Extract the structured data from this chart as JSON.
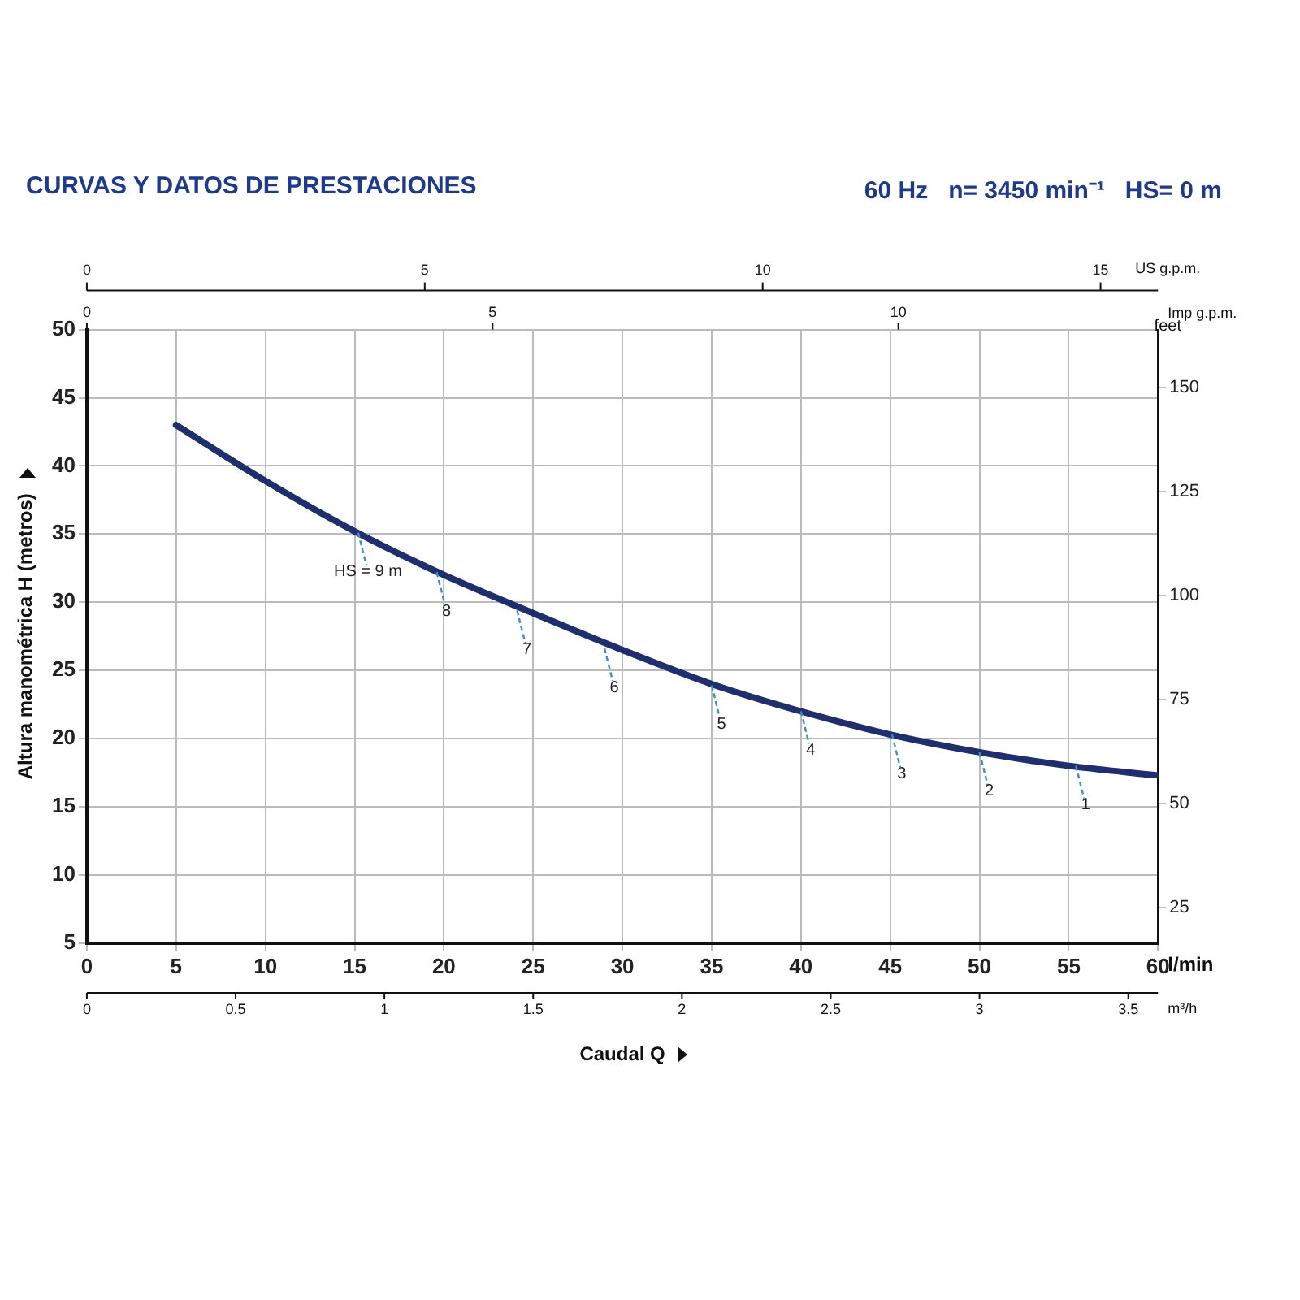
{
  "chart_data": {
    "type": "line",
    "title": "CURVAS Y DATOS DE PRESTACIONES",
    "subtitle": "60 Hz   n= 3450 min⁻¹   HS= 0 m",
    "xlabel": "Caudal Q",
    "ylabel": "Altura manométrica H (metros)",
    "x2label": "US g.p.m.",
    "y2label": "feet",
    "x": [
      5,
      10,
      15,
      20,
      25,
      30,
      35,
      40,
      45,
      50,
      55,
      60
    ],
    "series": [
      {
        "color": "#1f2f6e",
        "values": [
          43.0,
          38.9,
          35.2,
          32.0,
          29.2,
          26.5,
          24.0,
          22.0,
          20.3,
          19.0,
          18.0,
          17.3
        ]
      }
    ],
    "xlim": [
      0,
      60
    ],
    "xticks": [
      0,
      5,
      10,
      15,
      20,
      25,
      30,
      35,
      40,
      45,
      50,
      55,
      60
    ],
    "ylim": [
      5,
      50
    ],
    "yticks": [
      5,
      10,
      15,
      20,
      25,
      30,
      35,
      40,
      45,
      50
    ],
    "x2lim": [
      0,
      15.85
    ],
    "x2ticks": [
      0,
      5,
      10,
      15
    ],
    "y2lim": [
      16.4,
      164
    ],
    "y2ticks": [
      25,
      50,
      75,
      100,
      125,
      150
    ],
    "grid": true,
    "legend": false,
    "marker": "none",
    "line_style": "solid",
    "annotations": [
      "l/min",
      "m³/h",
      "0",
      "0.5",
      "1",
      "1.5",
      "2",
      "2.5",
      "3",
      "3.5",
      "Imp g.p.m.",
      "0",
      "5",
      "10",
      {
        "text": "HS = 9 m",
        "x": 15.2,
        "y": 35.1
      },
      {
        "text": "8",
        "x": 19.6,
        "y": 32.2
      },
      {
        "text": "7",
        "x": 24.1,
        "y": 29.4
      },
      {
        "text": "6",
        "x": 29.0,
        "y": 26.6
      },
      {
        "text": "5",
        "x": 35.0,
        "y": 23.9
      },
      {
        "text": "4",
        "x": 40.0,
        "y": 22.0
      },
      {
        "text": "3",
        "x": 45.1,
        "y": 20.3
      },
      {
        "text": "2",
        "x": 50.0,
        "y": 19.0
      },
      {
        "text": "1",
        "x": 55.4,
        "y": 18.0
      }
    ]
  }
}
